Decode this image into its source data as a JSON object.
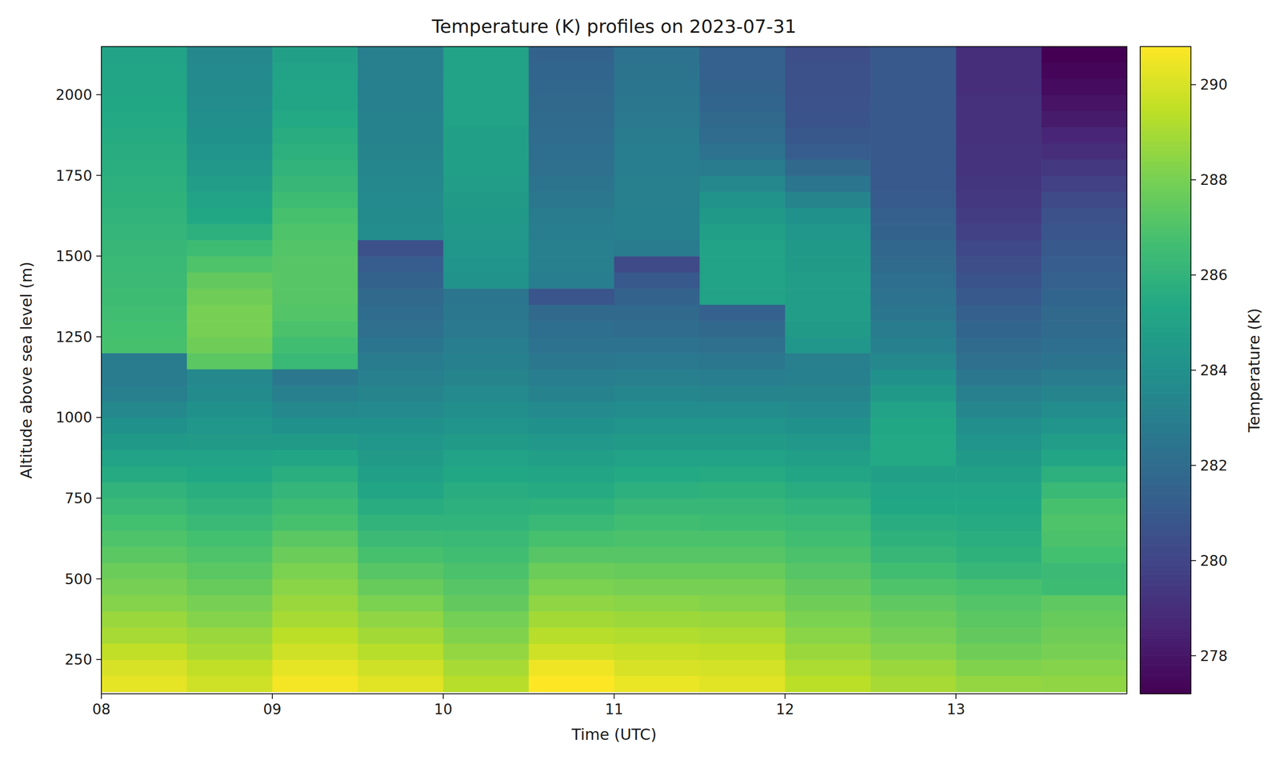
{
  "chart_data": {
    "type": "heatmap",
    "title": "Temperature (K) profiles on 2023-07-31",
    "x_label": "Time (UTC)",
    "y_label": "Altitude above sea level (m)",
    "x": [
      8,
      8.5,
      9,
      9.5,
      10,
      10.5,
      11,
      11.5,
      12,
      12.5,
      13,
      13.5,
      14
    ],
    "y": [
      150,
      200,
      250,
      300,
      350,
      400,
      450,
      500,
      550,
      600,
      650,
      700,
      750,
      800,
      850,
      900,
      950,
      1000,
      1050,
      1100,
      1150,
      1200,
      1250,
      1300,
      1350,
      1400,
      1450,
      1500,
      1550,
      1600,
      1650,
      1700,
      1750,
      1800,
      1850,
      1900,
      1950,
      2000,
      2050,
      2100,
      2150
    ],
    "xlim": [
      8,
      14
    ],
    "ylim": [
      144,
      2149
    ],
    "xticks": [
      {
        "value": 8,
        "label": "08"
      },
      {
        "value": 9,
        "label": "09"
      },
      {
        "value": 10,
        "label": "10"
      },
      {
        "value": 11,
        "label": "11"
      },
      {
        "value": 12,
        "label": "12"
      },
      {
        "value": 13,
        "label": "13"
      }
    ],
    "yticks": [
      250,
      500,
      750,
      1000,
      1250,
      1500,
      1750,
      2000
    ],
    "values": [
      [
        290.3,
        290,
        289.5,
        289,
        288.7,
        288.3,
        288,
        287.7,
        287.3,
        287,
        286.7,
        286.3,
        286,
        285.5,
        285,
        284.5,
        284,
        283.5,
        283,
        282.8,
        282.8,
        286.8,
        286.7,
        286.6,
        286.5,
        286.4,
        286.3,
        286.2,
        286.1,
        286,
        285.9,
        285.8,
        285.7,
        285.6,
        285.5,
        285.4,
        285.3,
        285.2,
        285.1,
        285
      ],
      [
        289.8,
        289.5,
        289,
        288.7,
        288.3,
        288,
        287.6,
        287.3,
        287,
        286.7,
        286.3,
        286,
        285.7,
        285.3,
        285,
        284.6,
        284.3,
        284,
        283.7,
        283.5,
        287.3,
        287.8,
        288,
        288,
        287.8,
        287.5,
        287,
        286.5,
        285.8,
        285.3,
        285,
        284.7,
        284.4,
        284.2,
        284,
        283.9,
        283.8,
        283.7,
        283.6,
        283.5
      ],
      [
        290.6,
        290.3,
        289.8,
        289.4,
        289,
        288.7,
        288.4,
        288.1,
        287.7,
        287.3,
        286.8,
        286.5,
        286.1,
        285.7,
        285.2,
        284.6,
        284,
        283.5,
        283,
        282.6,
        286.3,
        286.6,
        286.9,
        287.1,
        287.2,
        287.2,
        287.2,
        287.1,
        287,
        286.8,
        286.5,
        286.2,
        286,
        285.8,
        285.6,
        285.4,
        285.2,
        285.1,
        285,
        284.9
      ],
      [
        290.2,
        289.8,
        289.3,
        288.9,
        288.5,
        288.1,
        287.6,
        287.2,
        286.8,
        286.4,
        286,
        285.6,
        285.2,
        284.9,
        284.6,
        284.3,
        284,
        283.6,
        283.3,
        283,
        282.8,
        282.5,
        282.2,
        282,
        281.8,
        281.5,
        281.2,
        280.5,
        283.8,
        283.7,
        283.6,
        283.5,
        283.4,
        283.3,
        283.2,
        283.2,
        283.1,
        283.1,
        283,
        283
      ],
      [
        289.3,
        289,
        288.6,
        288.2,
        287.9,
        287.5,
        287.2,
        286.9,
        286.6,
        286.3,
        286,
        285.8,
        285.6,
        285.3,
        285,
        284.6,
        284.2,
        283.9,
        283.6,
        283.3,
        283.1,
        282.9,
        282.7,
        282.6,
        282.5,
        284.1,
        284.2,
        284.3,
        284.4,
        284.5,
        284.6,
        284.7,
        284.8,
        284.9,
        284.9,
        285,
        285,
        285,
        285,
        285
      ],
      [
        290.8,
        290.5,
        289.8,
        289.3,
        288.9,
        288.5,
        288.1,
        287.7,
        287.2,
        286.8,
        286.3,
        285.9,
        285.5,
        285.2,
        284.8,
        284.4,
        284,
        283.6,
        283.2,
        282.9,
        282.6,
        282.3,
        282.1,
        281.8,
        280.8,
        282.9,
        283,
        283,
        282.9,
        282.8,
        282.6,
        282.4,
        282.2,
        282.1,
        282,
        281.9,
        281.8,
        281.7,
        281.6,
        281.5
      ],
      [
        290.4,
        290,
        289.6,
        289.2,
        288.8,
        288.4,
        288,
        287.6,
        287.2,
        286.9,
        286.6,
        286.2,
        285.8,
        285.4,
        285,
        284.6,
        284.2,
        283.8,
        283.4,
        283,
        282.7,
        282.3,
        282,
        281.8,
        281.5,
        281,
        280.2,
        282.8,
        283.1,
        283.1,
        283,
        283,
        282.9,
        282.9,
        282.8,
        282.7,
        282.6,
        282.5,
        282.4,
        282.3
      ],
      [
        290.2,
        289.9,
        289.5,
        289.1,
        288.7,
        288.3,
        288,
        287.6,
        287.2,
        286.9,
        286.5,
        286.2,
        285.9,
        285.5,
        285,
        284.6,
        284.2,
        283.8,
        283.3,
        282.9,
        282.6,
        282.2,
        281.8,
        281.4,
        285,
        285,
        285,
        285,
        284.8,
        284.5,
        284.1,
        283.5,
        282.8,
        282.3,
        282,
        281.8,
        281.6,
        281.5,
        281.4,
        281.4
      ],
      [
        289.4,
        289.1,
        288.7,
        288.4,
        288.1,
        287.8,
        287.5,
        287.2,
        286.9,
        286.6,
        286.3,
        286,
        285.6,
        285.2,
        284.8,
        284.4,
        284,
        283.6,
        283.3,
        283.1,
        283,
        284.3,
        284.6,
        284.7,
        284.7,
        284.7,
        284.6,
        284.5,
        284.3,
        284,
        283.3,
        282.5,
        281.8,
        281.2,
        280.9,
        280.7,
        280.6,
        280.5,
        280.5,
        280.4
      ],
      [
        289,
        288.7,
        288.3,
        288,
        287.7,
        287.4,
        287,
        286.6,
        286.2,
        285.9,
        285.6,
        285.3,
        285.1,
        284.9,
        285.4,
        285.4,
        285.3,
        285,
        284.5,
        284,
        283.5,
        283.1,
        282.8,
        282.5,
        282.3,
        282.1,
        281.9,
        281.7,
        281.5,
        281.3,
        281.1,
        281,
        281,
        281,
        281,
        281,
        281,
        281,
        281,
        281
      ],
      [
        288.6,
        288.2,
        287.8,
        287.5,
        287.3,
        287.1,
        286.8,
        286.2,
        285.9,
        285.7,
        285.5,
        285.3,
        285.1,
        284.9,
        284.5,
        284.2,
        283.9,
        283.4,
        283,
        282.6,
        282.2,
        281.9,
        281.6,
        281.3,
        281,
        280.7,
        280.4,
        280.1,
        279.8,
        279.6,
        279.4,
        279.3,
        279.2,
        279.2,
        279.1,
        279.1,
        279.1,
        279,
        279,
        279
      ],
      [
        288.5,
        288.3,
        288,
        287.8,
        287.6,
        287.4,
        286.5,
        286.4,
        286.7,
        286.9,
        287,
        286.8,
        286.3,
        285.8,
        285.2,
        284.7,
        284.2,
        283.8,
        283.3,
        282.8,
        282.4,
        282.1,
        281.9,
        281.8,
        281.6,
        281.4,
        281.2,
        281,
        280.8,
        280.5,
        280.2,
        279.8,
        279.4,
        279,
        278.6,
        278.2,
        277.9,
        277.6,
        277.4,
        277.2
      ]
    ],
    "colorbar": {
      "label": "Temperature (K)",
      "lim": [
        277.2,
        290.8
      ],
      "ticks": [
        278,
        280,
        282,
        284,
        286,
        288,
        290
      ]
    }
  }
}
